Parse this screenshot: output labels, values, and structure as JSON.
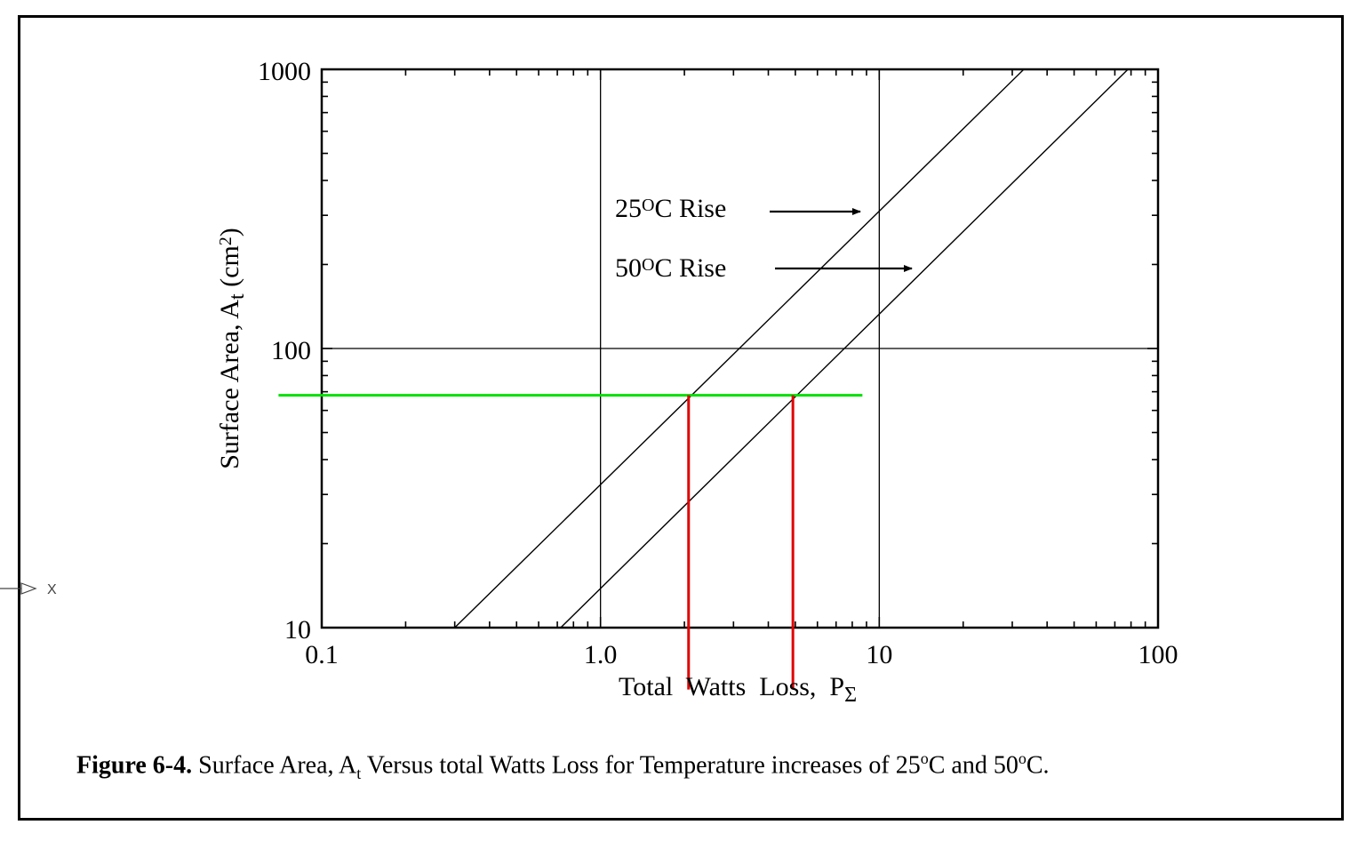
{
  "chart_data": {
    "type": "line",
    "x_scale": "log",
    "y_scale": "log",
    "xlim": [
      0.1,
      100
    ],
    "ylim": [
      10,
      1000
    ],
    "x_tick_labels": [
      {
        "value": 0.1,
        "label": "0.1"
      },
      {
        "value": 1,
        "label": "1.0"
      },
      {
        "value": 10,
        "label": "10"
      },
      {
        "value": 100,
        "label": "100"
      }
    ],
    "y_tick_labels": [
      {
        "value": 10,
        "label": "10"
      },
      {
        "value": 100,
        "label": "100"
      },
      {
        "value": 1000,
        "label": "1000"
      }
    ],
    "xlabel": {
      "main": "Total  Watts  Loss,  P",
      "sub": "Σ"
    },
    "ylabel": {
      "main": "Surface Area, A",
      "sub": "t",
      "unit_open": " (cm",
      "unit_sup": "2",
      "unit_close": ")"
    },
    "series": [
      {
        "name": "25°C Rise",
        "label_num": "25",
        "label_sup": "O",
        "label_rest": "C  Rise",
        "x": [
          0.3,
          33
        ],
        "y": [
          10,
          1000
        ]
      },
      {
        "name": "50°C Rise",
        "label_num": "50",
        "label_sup": "O",
        "label_rest": "C  Rise",
        "x": [
          0.72,
          78
        ],
        "y": [
          10,
          1000
        ]
      }
    ],
    "annotations": {
      "horizontal_line": {
        "y": 68,
        "x_from": 0.07,
        "x_to": 8.7,
        "color": "#00e000"
      },
      "vertical_lines": [
        {
          "x": 2.07,
          "y_from": 68,
          "y_to": 6.0,
          "color": "#e00000"
        },
        {
          "x": 4.9,
          "y_from": 68,
          "y_to": 6.0,
          "color": "#e00000"
        }
      ]
    },
    "grid": {
      "major": true
    }
  },
  "caption": {
    "bold": "Figure 6-4.",
    "t1": " Surface Area, A",
    "sub": "t",
    "t2": " Versus total Watts Loss for Temperature increases of 25",
    "sup1": "o",
    "t3": "C and 50",
    "sup2": "o",
    "t4": "C."
  },
  "side_marker": {
    "text": "X"
  }
}
